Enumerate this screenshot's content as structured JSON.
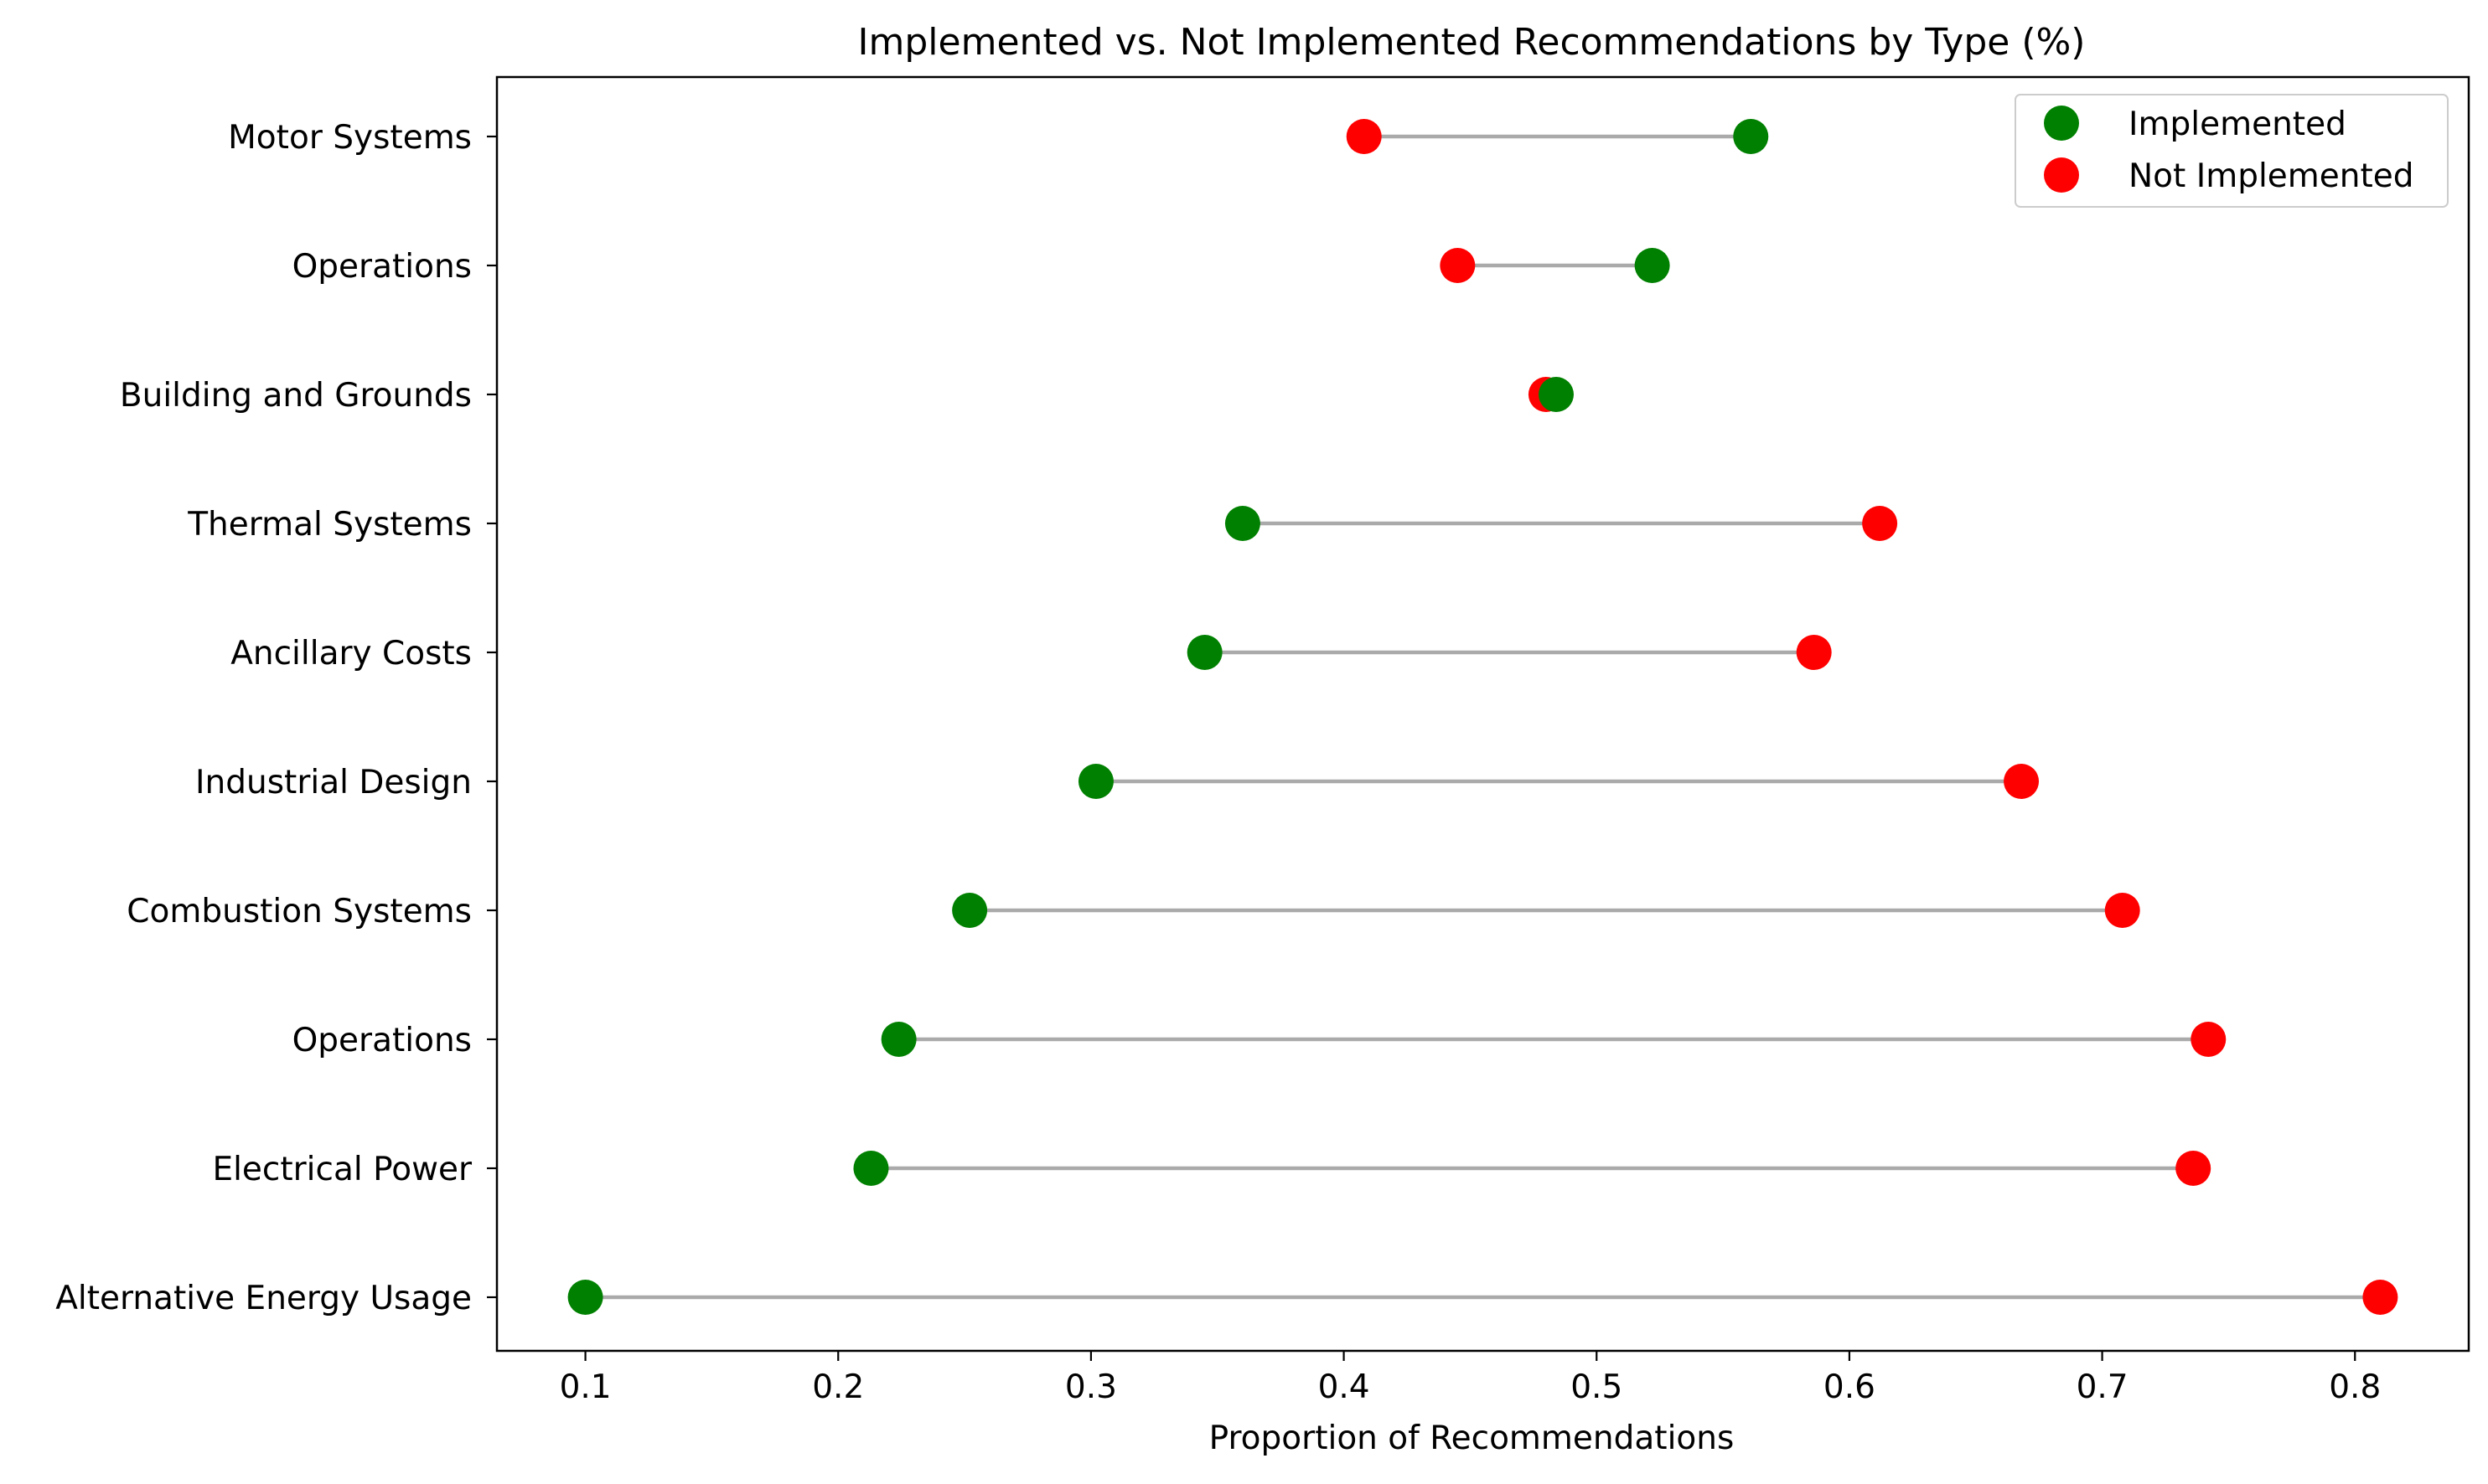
{
  "chart_data": {
    "type": "dumbbell",
    "title": "Implemented vs. Not Implemented Recommendations by Type (%)",
    "xlabel": "Proportion of Recommendations",
    "ylabel": "",
    "xlim": [
      0.065,
      0.845
    ],
    "xticks": [
      0.1,
      0.2,
      0.3,
      0.4,
      0.5,
      0.6,
      0.7,
      0.8
    ],
    "xtick_labels": [
      "0.1",
      "0.2",
      "0.3",
      "0.4",
      "0.5",
      "0.6",
      "0.7",
      "0.8"
    ],
    "grid": false,
    "legend_position": "top-right",
    "categories": [
      "Motor Systems",
      "Operations",
      "Building and Grounds",
      "Thermal Systems",
      "Ancillary Costs",
      "Industrial Design",
      "Combustion Systems",
      "Operations",
      "Electrical Power",
      "Alternative Energy Usage"
    ],
    "series": [
      {
        "name": "Implemented",
        "color": "#008000",
        "values": [
          0.561,
          0.522,
          0.484,
          0.36,
          0.345,
          0.302,
          0.252,
          0.224,
          0.213,
          0.1
        ]
      },
      {
        "name": "Not Implemented",
        "color": "#ff0000",
        "values": [
          0.408,
          0.445,
          0.48,
          0.612,
          0.586,
          0.668,
          0.708,
          0.742,
          0.736,
          0.81
        ]
      }
    ],
    "connector_color": "#aaaaaa"
  }
}
